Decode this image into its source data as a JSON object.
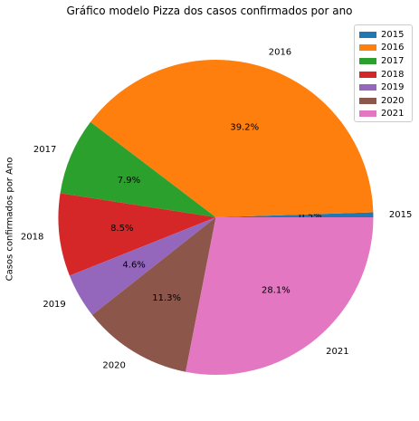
{
  "chart_data": {
    "type": "pie",
    "title": "Gráfico modelo Pizza dos casos confirmados por ano",
    "ylabel": "Casos confirmados por Ano",
    "categories": [
      "2015",
      "2016",
      "2017",
      "2018",
      "2019",
      "2020",
      "2021"
    ],
    "values": [
      0.5,
      39.2,
      7.9,
      8.5,
      4.6,
      11.3,
      28.1
    ],
    "value_labels": [
      "0.5%",
      "39.2%",
      "7.9%",
      "8.5%",
      "4.6%",
      "11.3%",
      "28.1%"
    ],
    "colors": [
      "#1f77b4",
      "#ff7f0e",
      "#2ca02c",
      "#d62728",
      "#9467bd",
      "#8c564b",
      "#e377c2"
    ],
    "start_angle": 0,
    "direction": "counterclockwise",
    "legend": {
      "placement": "top-right",
      "entries": [
        "2015",
        "2016",
        "2017",
        "2018",
        "2019",
        "2020",
        "2021"
      ]
    }
  }
}
